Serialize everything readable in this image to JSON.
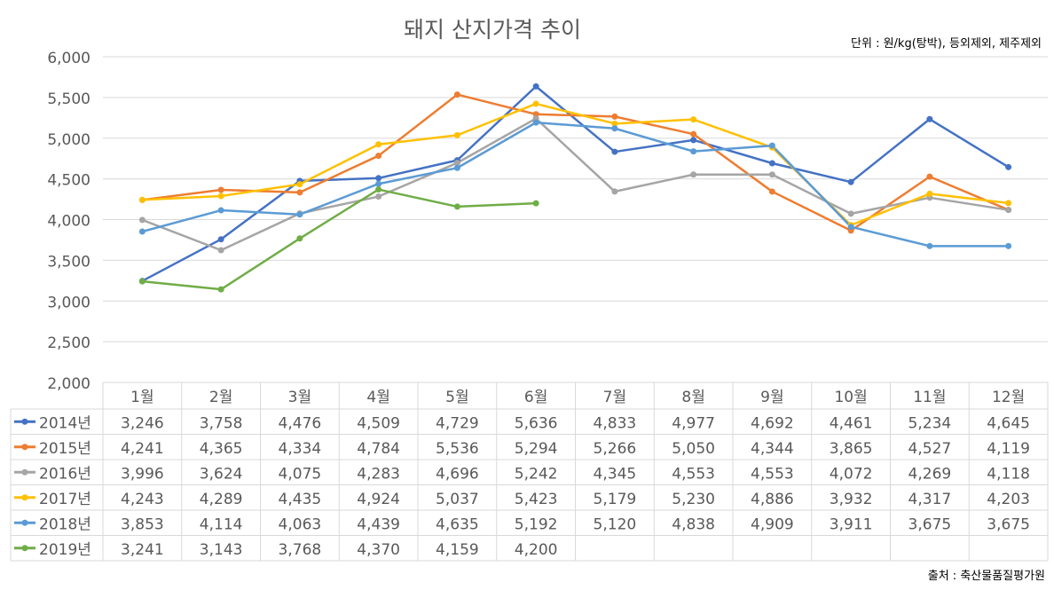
{
  "chart_data": {
    "type": "line",
    "title": "돼지 산지가격 추이",
    "unit_note": "단위 : 원/kg(탕박), 등외제외, 제주제외",
    "source": "출처 : 축산물품질평가원",
    "xlabel": "",
    "ylabel": "",
    "ylim": [
      2000,
      6000
    ],
    "yticks": [
      2000,
      2500,
      3000,
      3500,
      4000,
      4500,
      5000,
      5500,
      6000
    ],
    "ytick_labels": [
      "2,000",
      "2,500",
      "3,000",
      "3,500",
      "4,000",
      "4,500",
      "5,000",
      "5,500",
      "6,000"
    ],
    "grid": true,
    "legend": "data-table-left",
    "categories": [
      "1월",
      "2월",
      "3월",
      "4월",
      "5월",
      "6월",
      "7월",
      "8월",
      "9월",
      "10월",
      "11월",
      "12월"
    ],
    "series": [
      {
        "name": "2014년",
        "color": "#4472C4",
        "values": [
          3246,
          3758,
          4476,
          4509,
          4729,
          5636,
          4833,
          4977,
          4692,
          4461,
          5234,
          4645
        ],
        "labels": [
          "3,246",
          "3,758",
          "4,476",
          "4,509",
          "4,729",
          "5,636",
          "4,833",
          "4,977",
          "4,692",
          "4,461",
          "5,234",
          "4,645"
        ]
      },
      {
        "name": "2015년",
        "color": "#ED7D31",
        "values": [
          4241,
          4365,
          4334,
          4784,
          5536,
          5294,
          5266,
          5050,
          4344,
          3865,
          4527,
          4119
        ],
        "labels": [
          "4,241",
          "4,365",
          "4,334",
          "4,784",
          "5,536",
          "5,294",
          "5,266",
          "5,050",
          "4,344",
          "3,865",
          "4,527",
          "4,119"
        ]
      },
      {
        "name": "2016년",
        "color": "#A5A5A5",
        "values": [
          3996,
          3624,
          4075,
          4283,
          4696,
          5242,
          4345,
          4553,
          4553,
          4072,
          4269,
          4118
        ],
        "labels": [
          "3,996",
          "3,624",
          "4,075",
          "4,283",
          "4,696",
          "5,242",
          "4,345",
          "4,553",
          "4,553",
          "4,072",
          "4,269",
          "4,118"
        ]
      },
      {
        "name": "2017년",
        "color": "#FFC000",
        "values": [
          4243,
          4289,
          4435,
          4924,
          5037,
          5423,
          5179,
          5230,
          4886,
          3932,
          4317,
          4203
        ],
        "labels": [
          "4,243",
          "4,289",
          "4,435",
          "4,924",
          "5,037",
          "5,423",
          "5,179",
          "5,230",
          "4,886",
          "3,932",
          "4,317",
          "4,203"
        ]
      },
      {
        "name": "2018년",
        "color": "#5B9BD5",
        "values": [
          3853,
          4114,
          4063,
          4439,
          4635,
          5192,
          5120,
          4838,
          4909,
          3911,
          3675,
          3675
        ],
        "labels": [
          "3,853",
          "4,114",
          "4,063",
          "4,439",
          "4,635",
          "5,192",
          "5,120",
          "4,838",
          "4,909",
          "3,911",
          "3,675",
          "3,675"
        ]
      },
      {
        "name": "2019년",
        "color": "#70AD47",
        "values": [
          3241,
          3143,
          3768,
          4370,
          4159,
          4200,
          null,
          null,
          null,
          null,
          null,
          null
        ],
        "labels": [
          "3,241",
          "3,143",
          "3,768",
          "4,370",
          "4,159",
          "4,200",
          "",
          "",
          "",
          "",
          "",
          ""
        ]
      }
    ]
  }
}
